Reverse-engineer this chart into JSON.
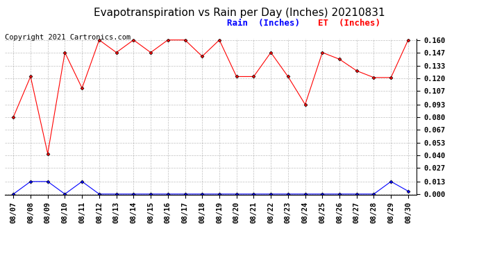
{
  "title": "Evapotranspiration vs Rain per Day (Inches) 20210831",
  "copyright": "Copyright 2021 Cartronics.com",
  "x_labels": [
    "08/07",
    "08/08",
    "08/09",
    "08/10",
    "08/11",
    "08/12",
    "08/13",
    "08/14",
    "08/15",
    "08/16",
    "08/17",
    "08/18",
    "08/19",
    "08/20",
    "08/21",
    "08/22",
    "08/23",
    "08/24",
    "08/25",
    "08/26",
    "08/27",
    "08/28",
    "08/29",
    "08/30"
  ],
  "et_values": [
    0.08,
    0.122,
    0.042,
    0.147,
    0.11,
    0.16,
    0.147,
    0.16,
    0.147,
    0.16,
    0.16,
    0.143,
    0.16,
    0.122,
    0.122,
    0.147,
    0.122,
    0.093,
    0.147,
    0.14,
    0.128,
    0.121,
    0.121,
    0.16
  ],
  "rain_values": [
    0.0,
    0.013,
    0.013,
    0.0,
    0.013,
    0.0,
    0.0,
    0.0,
    0.0,
    0.0,
    0.0,
    0.0,
    0.0,
    0.0,
    0.0,
    0.0,
    0.0,
    0.0,
    0.0,
    0.0,
    0.0,
    0.0,
    0.013,
    0.003
  ],
  "et_color": "red",
  "rain_color": "blue",
  "ylim_min": 0.0,
  "ylim_max": 0.16,
  "yticks": [
    0.0,
    0.013,
    0.027,
    0.04,
    0.053,
    0.067,
    0.08,
    0.093,
    0.107,
    0.12,
    0.133,
    0.147,
    0.16
  ],
  "legend_rain": "Rain  (Inches)",
  "legend_et": "ET  (Inches)",
  "bg_color": "#ffffff",
  "plot_bg_color": "#ffffff",
  "title_fontsize": 11,
  "copyright_fontsize": 7.5,
  "legend_fontsize": 9,
  "tick_fontsize": 7.5,
  "marker": "D",
  "marker_size": 2.5
}
